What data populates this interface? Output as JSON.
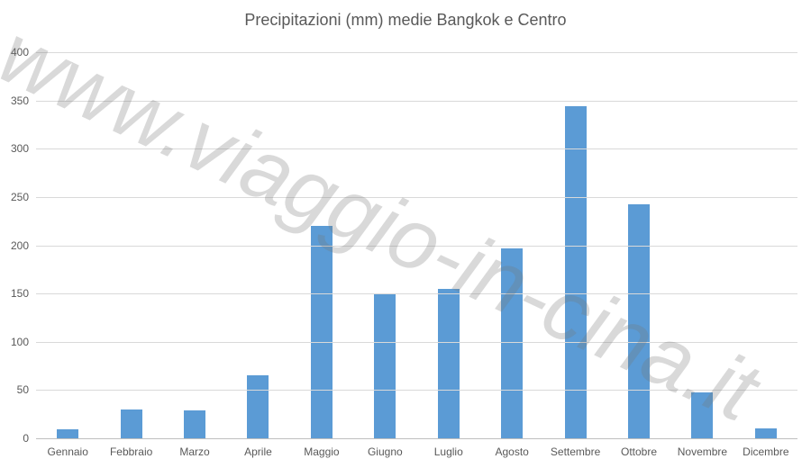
{
  "chart_data": {
    "type": "bar",
    "title": "Precipitazioni (mm) medie Bangkok e Centro",
    "categories": [
      "Gennaio",
      "Febbraio",
      "Marzo",
      "Aprile",
      "Maggio",
      "Giugno",
      "Luglio",
      "Agosto",
      "Settembre",
      "Ottobre",
      "Novembre",
      "Dicembre"
    ],
    "values": [
      9,
      30,
      29,
      65,
      220,
      149,
      155,
      197,
      344,
      242,
      48,
      10
    ],
    "xlabel": "",
    "ylabel": "",
    "ylim": [
      0,
      400
    ],
    "ytick_step": 50,
    "yticks": [
      0,
      50,
      100,
      150,
      200,
      250,
      300,
      350,
      400
    ],
    "grid": true,
    "legend": false,
    "colors": {
      "bar": "#5B9BD5",
      "gridline": "#D9D9D9",
      "axis_line": "#BFBFBF",
      "text": "#595959"
    }
  },
  "watermark": {
    "text": "www.viaggio-in-cina.it"
  }
}
